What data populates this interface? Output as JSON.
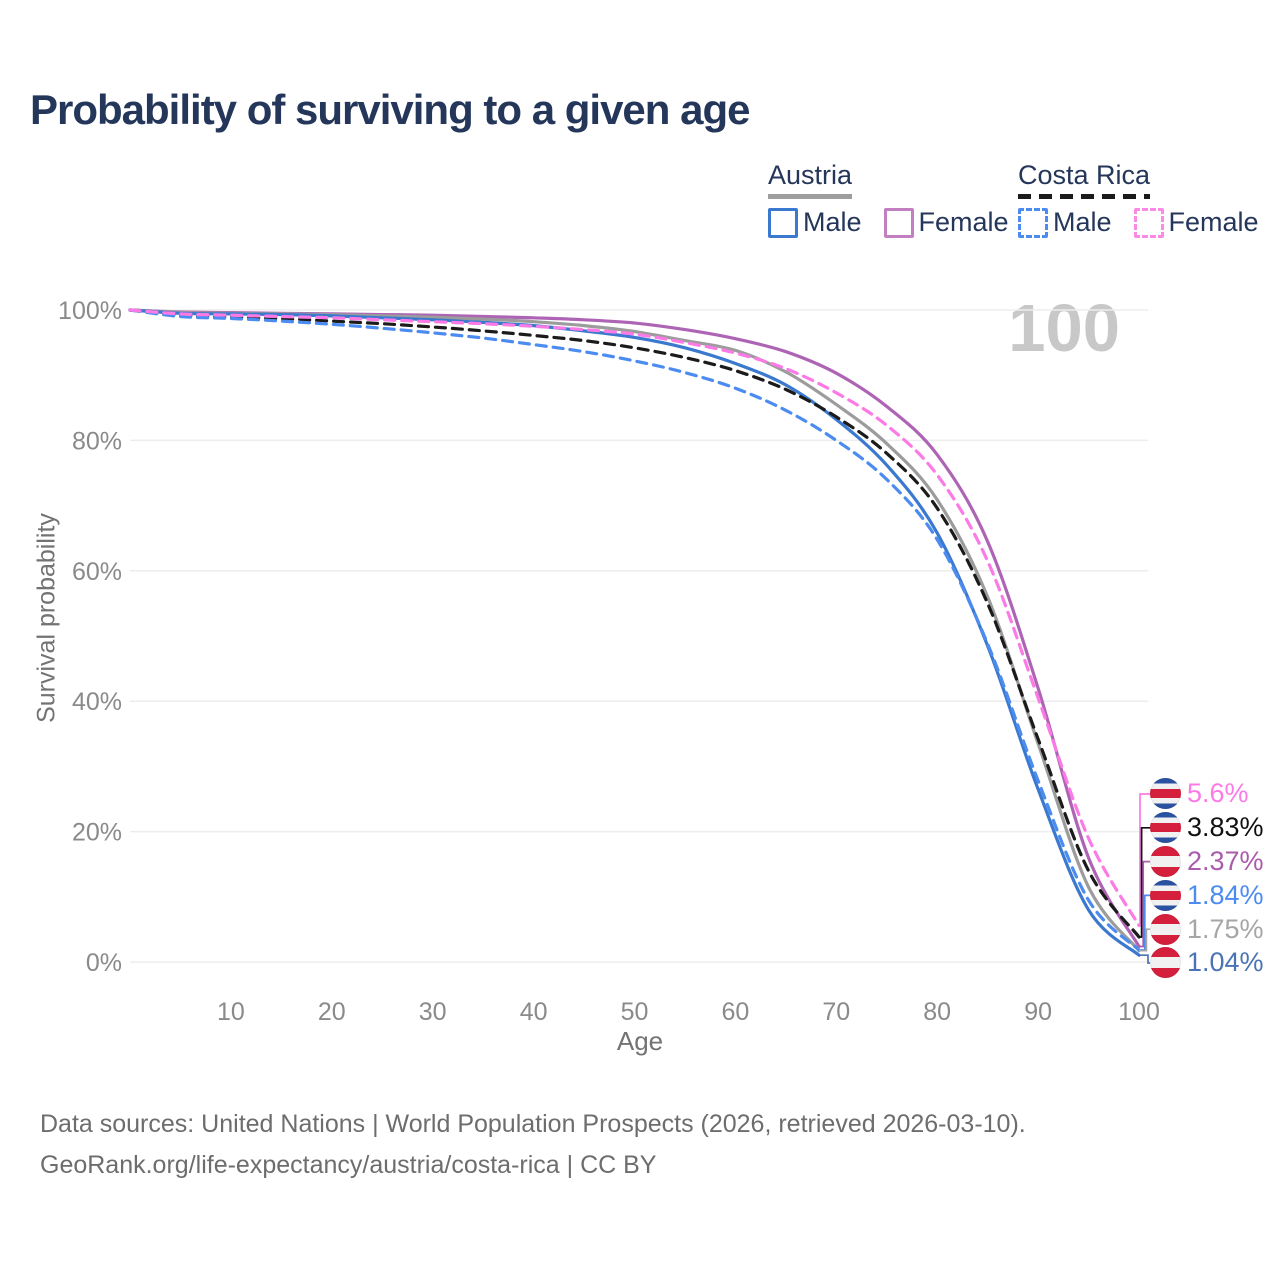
{
  "page": {
    "title": "Probability of surviving to a given age",
    "watermark": "100",
    "footer": {
      "line1": "Data sources: United Nations | World Population Prospects (2026, retrieved 2026-03-10).",
      "line2": "GeoRank.org/life-expectancy/austria/costa-rica | CC BY"
    }
  },
  "legend": {
    "groups": [
      {
        "country": "Austria",
        "line_style": "solid",
        "items": [
          {
            "label": "Male",
            "color": "#3b79cf",
            "swatch_style": "solid"
          },
          {
            "label": "Female",
            "color": "#c27fc2",
            "swatch_style": "solid"
          }
        ]
      },
      {
        "country": "Costa Rica",
        "line_style": "dashed",
        "items": [
          {
            "label": "Male",
            "color": "#4c8cf0",
            "swatch_style": "dashed"
          },
          {
            "label": "Female",
            "color": "#fb8ae6",
            "swatch_style": "dashed"
          }
        ]
      }
    ]
  },
  "end_labels": [
    {
      "value": "5.6%",
      "series": "cr_female",
      "flag": "costa-rica",
      "color": "#fb7ae6"
    },
    {
      "value": "3.83%",
      "series": "cr_total",
      "flag": "costa-rica",
      "color": "#111111"
    },
    {
      "value": "2.37%",
      "series": "at_female",
      "flag": "austria",
      "color": "#aa5cab"
    },
    {
      "value": "1.84%",
      "series": "cr_male",
      "flag": "costa-rica",
      "color": "#4c8cf0"
    },
    {
      "value": "1.75%",
      "series": "at_total",
      "flag": "austria",
      "color": "#a6a6a6"
    },
    {
      "value": "1.04%",
      "series": "at_male",
      "flag": "austria",
      "color": "#4a74b4"
    }
  ],
  "chart_data": {
    "type": "line",
    "title": "Probability of surviving to a given age",
    "xlabel": "Age",
    "ylabel": "Survival probability",
    "xlim": [
      0,
      100
    ],
    "ylim": [
      0,
      100
    ],
    "grid": "horizontal",
    "x_ticks": [
      10,
      20,
      30,
      40,
      50,
      60,
      70,
      80,
      90,
      100
    ],
    "y_ticks_percent": [
      0,
      20,
      40,
      60,
      80,
      100
    ],
    "x": [
      0,
      5,
      10,
      15,
      20,
      25,
      30,
      35,
      40,
      45,
      50,
      55,
      60,
      65,
      70,
      75,
      80,
      85,
      90,
      95,
      100
    ],
    "series": [
      {
        "key": "at_female",
        "name": "Austria Female",
        "country": "Austria",
        "sex": "Female",
        "style": "solid",
        "color": "#ae64b4",
        "values": [
          100,
          99.7,
          99.6,
          99.5,
          99.4,
          99.3,
          99.2,
          99.0,
          98.8,
          98.5,
          98.0,
          97.0,
          95.6,
          93.6,
          90.3,
          85.2,
          77.8,
          64.5,
          42.0,
          16.0,
          2.37
        ]
      },
      {
        "key": "at_total",
        "name": "Austria",
        "country": "Austria",
        "sex": "Both",
        "style": "solid",
        "color": "#9c9c9c",
        "values": [
          100,
          99.6,
          99.5,
          99.4,
          99.3,
          99.1,
          98.9,
          98.6,
          98.2,
          97.6,
          96.7,
          95.3,
          93.8,
          90.5,
          85.5,
          79.5,
          70.9,
          56.0,
          33.5,
          11.5,
          1.75
        ]
      },
      {
        "key": "at_male",
        "name": "Austria Male",
        "country": "Austria",
        "sex": "Male",
        "style": "solid",
        "color": "#3b79cf",
        "values": [
          100,
          99.5,
          99.4,
          99.3,
          99.1,
          98.8,
          98.5,
          98.1,
          97.6,
          96.8,
          95.8,
          94.2,
          91.8,
          88.5,
          83.2,
          76.2,
          65.8,
          48.5,
          26.5,
          8.0,
          1.04
        ]
      },
      {
        "key": "cr_total",
        "name": "Costa Rica",
        "country": "Costa Rica",
        "sex": "Both",
        "style": "dashed",
        "color": "#1b1b1b",
        "values": [
          100,
          99.2,
          98.9,
          98.7,
          98.3,
          97.9,
          97.4,
          96.8,
          96.1,
          95.3,
          94.2,
          92.7,
          90.7,
          87.8,
          83.6,
          78.0,
          69.6,
          55.0,
          34.2,
          14.0,
          3.83
        ]
      },
      {
        "key": "cr_male",
        "name": "Costa Rica Male",
        "country": "Costa Rica",
        "sex": "Male",
        "style": "dashed",
        "color": "#4c8cf0",
        "values": [
          100,
          99.0,
          98.7,
          98.3,
          97.8,
          97.2,
          96.5,
          95.7,
          94.7,
          93.6,
          92.2,
          90.4,
          88.0,
          84.6,
          80.0,
          74.0,
          64.8,
          48.8,
          27.8,
          9.5,
          1.84
        ]
      },
      {
        "key": "cr_female",
        "name": "Costa Rica Female",
        "country": "Costa Rica",
        "sex": "Female",
        "style": "dashed",
        "color": "#fb7ae6",
        "values": [
          100,
          99.4,
          99.2,
          99.0,
          98.8,
          98.5,
          98.2,
          97.9,
          97.5,
          97.0,
          96.3,
          95.0,
          93.4,
          91.0,
          87.3,
          82.3,
          74.7,
          61.5,
          40.5,
          19.0,
          5.6
        ]
      }
    ]
  }
}
